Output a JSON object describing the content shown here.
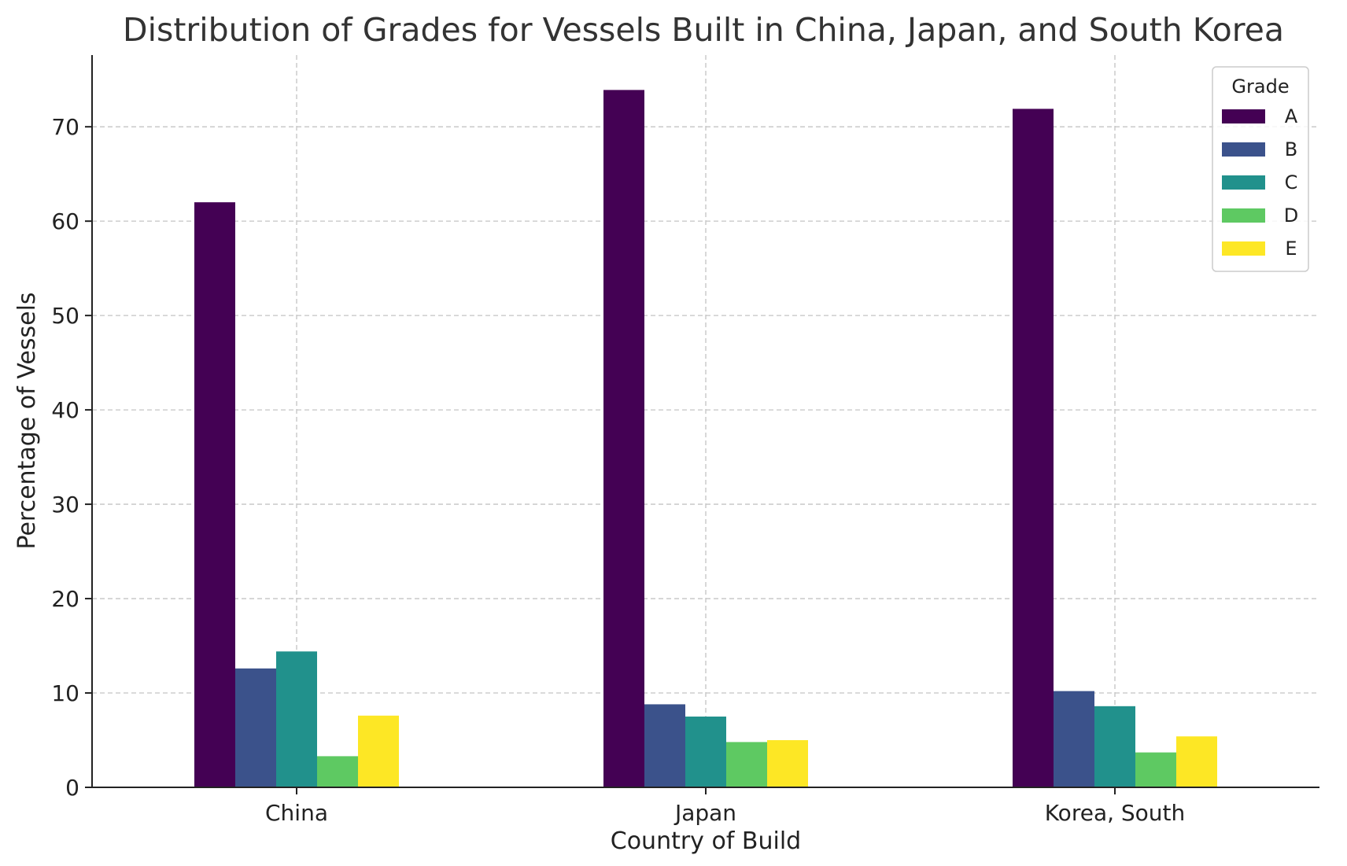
{
  "chart_data": {
    "type": "bar",
    "title": "Distribution of Grades for Vessels Built in China, Japan, and South Korea",
    "xlabel": "Country of Build",
    "ylabel": "Percentage of Vessels",
    "categories": [
      "China",
      "Japan",
      "Korea, South"
    ],
    "series": [
      {
        "name": "A",
        "color": "#440154",
        "values": [
          62.0,
          73.9,
          71.9
        ]
      },
      {
        "name": "B",
        "color": "#3b528b",
        "values": [
          12.6,
          8.8,
          10.2
        ]
      },
      {
        "name": "C",
        "color": "#21918c",
        "values": [
          14.4,
          7.5,
          8.6
        ]
      },
      {
        "name": "D",
        "color": "#5ec962",
        "values": [
          3.3,
          4.8,
          3.7
        ]
      },
      {
        "name": "E",
        "color": "#fde725",
        "values": [
          7.6,
          5.0,
          5.4
        ]
      }
    ],
    "ylim": [
      0,
      77.6
    ],
    "yticks": [
      0,
      10,
      20,
      30,
      40,
      50,
      60,
      70
    ],
    "grid": true,
    "legend": {
      "title": "Grade",
      "position": "top-right"
    }
  }
}
